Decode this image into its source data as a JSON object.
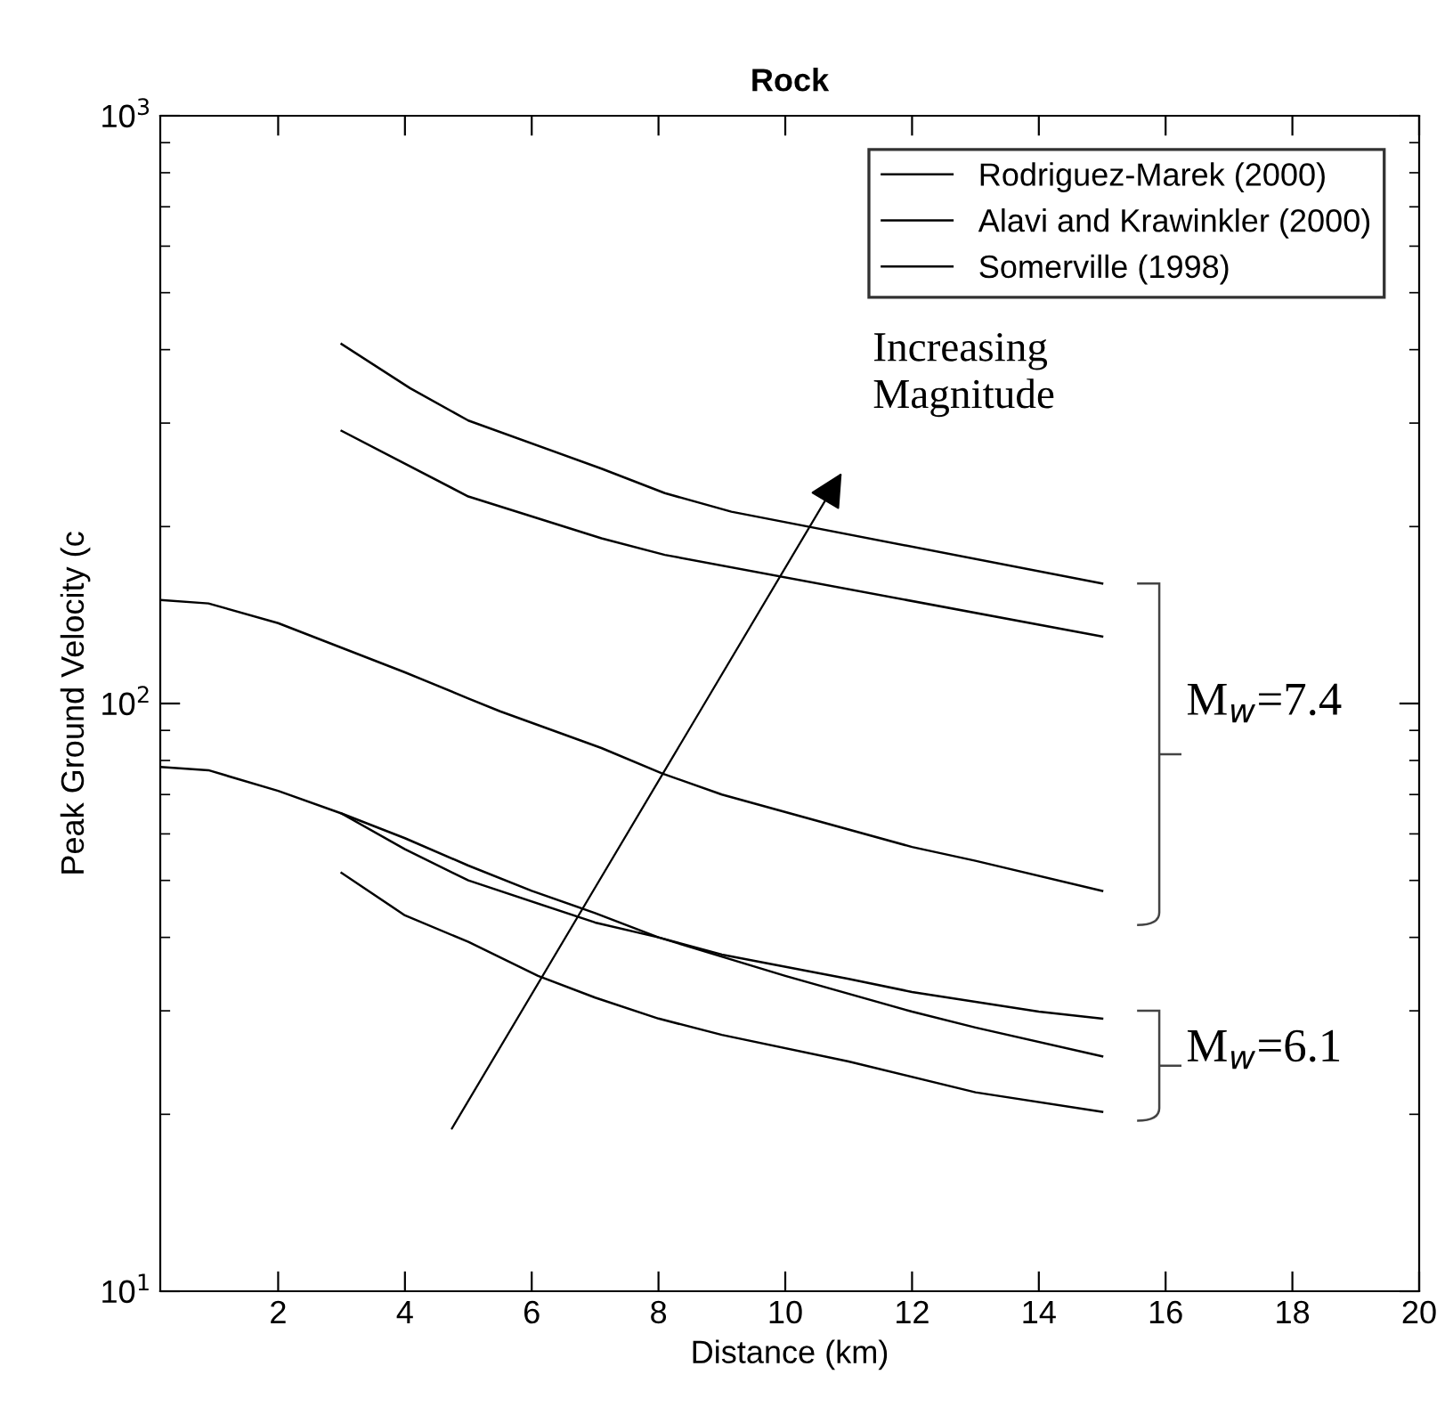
{
  "chart_data": {
    "type": "line",
    "title": "Rock",
    "xlabel": "Distance (km)",
    "ylabel": "Peak Ground Velocity (c",
    "xlim": [
      0.14,
      20
    ],
    "xticks": [
      2,
      4,
      6,
      8,
      10,
      12,
      14,
      16,
      18,
      20
    ],
    "ylim": [
      10,
      1000
    ],
    "yticks": [
      {
        "value": 10,
        "label": "10$^{1}$"
      },
      {
        "value": 100,
        "label": "10$^{2}$"
      },
      {
        "value": 1000,
        "label": "10$^{3}$"
      }
    ],
    "log": "y",
    "grid": false,
    "legend": "top right",
    "marker": "none",
    "line_style": "solid",
    "series": [
      {
        "name": "Rodriguez-Marek (2000)",
        "color": "#000000",
        "x": [
          3,
          4.08,
          5,
          7.1,
          8.1,
          9.15,
          15
        ],
        "values": [
          409,
          344,
          303,
          251,
          228,
          212,
          160
        ]
      },
      {
        "name": "Alavi and Krawinkler (2000)",
        "color": "#000000",
        "x": [
          0.14,
          0.9,
          2,
          4,
          5,
          5.5,
          7.1,
          8.06,
          9,
          12,
          13,
          15
        ],
        "values": [
          150,
          148,
          137,
          113,
          102,
          97,
          84,
          76,
          70,
          57,
          54,
          48
        ]
      },
      {
        "name": "Somerville (1998)",
        "color": "#000000",
        "x": [
          3,
          5,
          7.1,
          8.1,
          15
        ],
        "values": [
          291,
          225,
          191,
          179,
          130
        ]
      },
      {
        "color": "#000000",
        "x": [
          0.14,
          0.9,
          2,
          3,
          4,
          5,
          6,
          7,
          8,
          9,
          11,
          12,
          14,
          15
        ],
        "values": [
          78,
          77,
          71,
          65,
          59,
          53,
          48,
          44,
          40,
          37.4,
          34,
          32.3,
          29.9,
          29.1
        ]
      },
      {
        "color": "#000000",
        "x": [
          3,
          4,
          5,
          7,
          8,
          10,
          12,
          13,
          15
        ],
        "values": [
          65,
          56.5,
          50,
          42.4,
          40,
          34.4,
          29.9,
          28.1,
          25.1
        ]
      },
      {
        "color": "#000000",
        "x": [
          3,
          4,
          5,
          6.1,
          7,
          8,
          9,
          11,
          13,
          15
        ],
        "values": [
          51.5,
          43.6,
          39.3,
          34.4,
          31.6,
          29.1,
          27.3,
          24.6,
          21.8,
          20.2
        ]
      }
    ],
    "annotations": [
      "Increasing\nMagnitude",
      "M$_{w}$=7.4",
      "M$_{w}$=6.1"
    ]
  }
}
